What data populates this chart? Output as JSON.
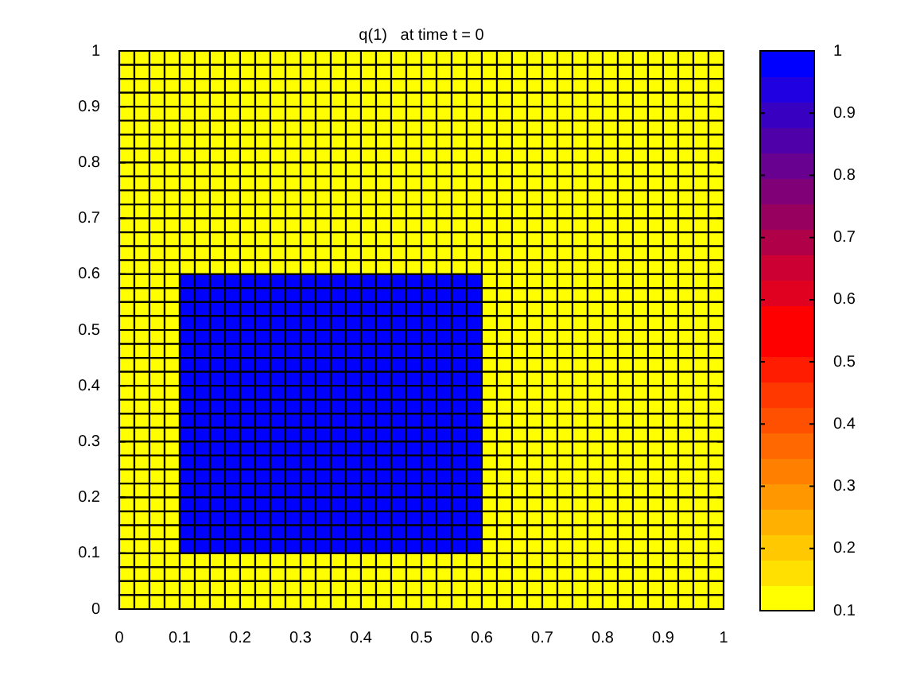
{
  "chart_data": {
    "type": "heatmap",
    "title": "q(1)   at time t = 0",
    "x": [
      0.0125,
      0.0375,
      0.0625,
      0.0875,
      0.1125,
      0.1375,
      0.1625,
      0.1875,
      0.2125,
      0.2375,
      0.2625,
      0.2875,
      0.3125,
      0.3375,
      0.3625,
      0.3875,
      0.4125,
      0.4375,
      0.4625,
      0.4875,
      0.5125,
      0.5375,
      0.5625,
      0.5875,
      0.6125,
      0.6375,
      0.6625,
      0.6875,
      0.7125,
      0.7375,
      0.7625,
      0.7875,
      0.8125,
      0.8375,
      0.8625,
      0.8875,
      0.9125,
      0.9375,
      0.9625,
      0.9875
    ],
    "y": [
      0.9875,
      0.9625,
      0.9375,
      0.9125,
      0.8875,
      0.8625,
      0.8375,
      0.8125,
      0.7875,
      0.7625,
      0.7375,
      0.7125,
      0.6875,
      0.6625,
      0.6375,
      0.6125,
      0.5875,
      0.5625,
      0.5375,
      0.5125,
      0.4875,
      0.4625,
      0.4375,
      0.4125,
      0.3875,
      0.3625,
      0.3375,
      0.3125,
      0.2875,
      0.2625,
      0.2375,
      0.2125,
      0.1875,
      0.1625,
      0.1375,
      0.1125,
      0.0875,
      0.0625,
      0.0375,
      0.0125
    ],
    "xlim": [
      0,
      1
    ],
    "xticks": [
      0,
      0.1,
      0.2,
      0.3,
      0.4,
      0.5,
      0.6,
      0.7,
      0.8,
      0.9,
      1
    ],
    "ylim": [
      0,
      1
    ],
    "yticks": [
      0,
      0.1,
      0.2,
      0.3,
      0.4,
      0.5,
      0.6,
      0.7,
      0.8,
      0.9,
      1
    ],
    "clim": [
      0.1,
      1
    ],
    "cticks": [
      0.1,
      0.2,
      0.3,
      0.4,
      0.5,
      0.6,
      0.7,
      0.8,
      0.9,
      1
    ],
    "colors": [
      "#ffff00",
      "#ffe000",
      "#ffc800",
      "#ffb000",
      "#ff9800",
      "#ff8000",
      "#ff6800",
      "#ff5000",
      "#ff3800",
      "#ff1c00",
      "#ff0000",
      "#ff0000",
      "#e00020",
      "#cc0033",
      "#b00048",
      "#980060",
      "#800078",
      "#680090",
      "#5000a8",
      "#3800c0",
      "#2000e0",
      "#0000ff"
    ],
    "cells": [
      [
        0.1,
        0.1,
        0.1,
        0.1,
        0.1,
        0.1,
        0.1,
        0.1,
        0.1,
        0.1,
        0.1,
        0.1,
        0.1,
        0.1,
        0.1,
        0.1,
        0.1,
        0.1,
        0.1,
        0.1,
        0.1,
        0.1,
        0.1,
        0.1,
        0.1,
        0.1,
        0.1,
        0.1,
        0.1,
        0.1,
        0.1,
        0.1,
        0.1,
        0.1,
        0.1,
        0.1,
        0.1,
        0.1,
        0.1,
        0.1
      ],
      [
        0.1,
        0.1,
        0.1,
        0.1,
        0.1,
        0.1,
        0.1,
        0.1,
        0.1,
        0.1,
        0.1,
        0.1,
        0.1,
        0.1,
        0.1,
        0.1,
        0.1,
        0.1,
        0.1,
        0.1,
        0.1,
        0.1,
        0.1,
        0.1,
        0.1,
        0.1,
        0.1,
        0.1,
        0.1,
        0.1,
        0.1,
        0.1,
        0.1,
        0.1,
        0.1,
        0.1,
        0.1,
        0.1,
        0.1,
        0.1
      ],
      [
        0.1,
        0.1,
        0.1,
        0.1,
        0.1,
        0.1,
        0.1,
        0.1,
        0.1,
        0.1,
        0.1,
        0.1,
        0.1,
        0.1,
        0.1,
        0.1,
        0.1,
        0.1,
        0.1,
        0.1,
        0.1,
        0.1,
        0.1,
        0.1,
        0.1,
        0.1,
        0.1,
        0.1,
        0.1,
        0.1,
        0.1,
        0.1,
        0.1,
        0.1,
        0.1,
        0.1,
        0.1,
        0.1,
        0.1,
        0.1
      ],
      [
        0.1,
        0.1,
        0.1,
        0.1,
        0.1,
        0.1,
        0.1,
        0.1,
        0.1,
        0.1,
        0.1,
        0.1,
        0.1,
        0.1,
        0.1,
        0.1,
        0.1,
        0.1,
        0.1,
        0.1,
        0.1,
        0.1,
        0.1,
        0.1,
        0.1,
        0.1,
        0.1,
        0.1,
        0.1,
        0.1,
        0.1,
        0.1,
        0.1,
        0.1,
        0.1,
        0.1,
        0.1,
        0.1,
        0.1,
        0.1
      ],
      [
        0.1,
        0.1,
        0.1,
        0.1,
        0.1,
        0.1,
        0.1,
        0.1,
        0.1,
        0.1,
        0.1,
        0.1,
        0.1,
        0.1,
        0.1,
        0.1,
        0.1,
        0.1,
        0.1,
        0.1,
        0.1,
        0.1,
        0.1,
        0.1,
        0.1,
        0.1,
        0.1,
        0.1,
        0.1,
        0.1,
        0.1,
        0.1,
        0.1,
        0.1,
        0.1,
        0.1,
        0.1,
        0.1,
        0.1,
        0.1
      ],
      [
        0.1,
        0.1,
        0.1,
        0.1,
        0.1,
        0.1,
        0.1,
        0.1,
        0.1,
        0.1,
        0.1,
        0.1,
        0.1,
        0.1,
        0.1,
        0.1,
        0.1,
        0.1,
        0.1,
        0.1,
        0.1,
        0.1,
        0.1,
        0.1,
        0.1,
        0.1,
        0.1,
        0.1,
        0.1,
        0.1,
        0.1,
        0.1,
        0.1,
        0.1,
        0.1,
        0.1,
        0.1,
        0.1,
        0.1,
        0.1
      ],
      [
        0.1,
        0.1,
        0.1,
        0.1,
        0.1,
        0.1,
        0.1,
        0.1,
        0.1,
        0.1,
        0.1,
        0.1,
        0.1,
        0.1,
        0.1,
        0.1,
        0.1,
        0.1,
        0.1,
        0.1,
        0.1,
        0.1,
        0.1,
        0.1,
        0.1,
        0.1,
        0.1,
        0.1,
        0.1,
        0.1,
        0.1,
        0.1,
        0.1,
        0.1,
        0.1,
        0.1,
        0.1,
        0.1,
        0.1,
        0.1
      ],
      [
        0.1,
        0.1,
        0.1,
        0.1,
        0.1,
        0.1,
        0.1,
        0.1,
        0.1,
        0.1,
        0.1,
        0.1,
        0.1,
        0.1,
        0.1,
        0.1,
        0.1,
        0.1,
        0.1,
        0.1,
        0.1,
        0.1,
        0.1,
        0.1,
        0.1,
        0.1,
        0.1,
        0.1,
        0.1,
        0.1,
        0.1,
        0.1,
        0.1,
        0.1,
        0.1,
        0.1,
        0.1,
        0.1,
        0.1,
        0.1
      ],
      [
        0.1,
        0.1,
        0.1,
        0.1,
        0.1,
        0.1,
        0.1,
        0.1,
        0.1,
        0.1,
        0.1,
        0.1,
        0.1,
        0.1,
        0.1,
        0.1,
        0.1,
        0.1,
        0.1,
        0.1,
        0.1,
        0.1,
        0.1,
        0.1,
        0.1,
        0.1,
        0.1,
        0.1,
        0.1,
        0.1,
        0.1,
        0.1,
        0.1,
        0.1,
        0.1,
        0.1,
        0.1,
        0.1,
        0.1,
        0.1
      ],
      [
        0.1,
        0.1,
        0.1,
        0.1,
        0.1,
        0.1,
        0.1,
        0.1,
        0.1,
        0.1,
        0.1,
        0.1,
        0.1,
        0.1,
        0.1,
        0.1,
        0.1,
        0.1,
        0.1,
        0.1,
        0.1,
        0.1,
        0.1,
        0.1,
        0.1,
        0.1,
        0.1,
        0.1,
        0.1,
        0.1,
        0.1,
        0.1,
        0.1,
        0.1,
        0.1,
        0.1,
        0.1,
        0.1,
        0.1,
        0.1
      ],
      [
        0.1,
        0.1,
        0.1,
        0.1,
        0.1,
        0.1,
        0.1,
        0.1,
        0.1,
        0.1,
        0.1,
        0.1,
        0.1,
        0.1,
        0.1,
        0.1,
        0.1,
        0.1,
        0.1,
        0.1,
        0.1,
        0.1,
        0.1,
        0.1,
        0.1,
        0.1,
        0.1,
        0.1,
        0.1,
        0.1,
        0.1,
        0.1,
        0.1,
        0.1,
        0.1,
        0.1,
        0.1,
        0.1,
        0.1,
        0.1
      ],
      [
        0.1,
        0.1,
        0.1,
        0.1,
        0.1,
        0.1,
        0.1,
        0.1,
        0.1,
        0.1,
        0.1,
        0.1,
        0.1,
        0.1,
        0.1,
        0.1,
        0.1,
        0.1,
        0.1,
        0.1,
        0.1,
        0.1,
        0.1,
        0.1,
        0.1,
        0.1,
        0.1,
        0.1,
        0.1,
        0.1,
        0.1,
        0.1,
        0.1,
        0.1,
        0.1,
        0.1,
        0.1,
        0.1,
        0.1,
        0.1
      ],
      [
        0.1,
        0.1,
        0.1,
        0.1,
        0.1,
        0.1,
        0.1,
        0.1,
        0.1,
        0.1,
        0.1,
        0.1,
        0.1,
        0.1,
        0.1,
        0.1,
        0.1,
        0.1,
        0.1,
        0.1,
        0.1,
        0.1,
        0.1,
        0.1,
        0.1,
        0.1,
        0.1,
        0.1,
        0.1,
        0.1,
        0.1,
        0.1,
        0.1,
        0.1,
        0.1,
        0.1,
        0.1,
        0.1,
        0.1,
        0.1
      ],
      [
        0.1,
        0.1,
        0.1,
        0.1,
        0.1,
        0.1,
        0.1,
        0.1,
        0.1,
        0.1,
        0.1,
        0.1,
        0.1,
        0.1,
        0.1,
        0.1,
        0.1,
        0.1,
        0.1,
        0.1,
        0.1,
        0.1,
        0.1,
        0.1,
        0.1,
        0.1,
        0.1,
        0.1,
        0.1,
        0.1,
        0.1,
        0.1,
        0.1,
        0.1,
        0.1,
        0.1,
        0.1,
        0.1,
        0.1,
        0.1
      ],
      [
        0.1,
        0.1,
        0.1,
        0.1,
        0.1,
        0.1,
        0.1,
        0.1,
        0.1,
        0.1,
        0.1,
        0.1,
        0.1,
        0.1,
        0.1,
        0.1,
        0.1,
        0.1,
        0.1,
        0.1,
        0.1,
        0.1,
        0.1,
        0.1,
        0.1,
        0.1,
        0.1,
        0.1,
        0.1,
        0.1,
        0.1,
        0.1,
        0.1,
        0.1,
        0.1,
        0.1,
        0.1,
        0.1,
        0.1,
        0.1
      ],
      [
        0.1,
        0.1,
        0.1,
        0.1,
        0.1,
        0.1,
        0.1,
        0.1,
        0.1,
        0.1,
        0.1,
        0.1,
        0.1,
        0.1,
        0.1,
        0.1,
        0.1,
        0.1,
        0.1,
        0.1,
        0.1,
        0.1,
        0.1,
        0.1,
        0.1,
        0.1,
        0.1,
        0.1,
        0.1,
        0.1,
        0.1,
        0.1,
        0.1,
        0.1,
        0.1,
        0.1,
        0.1,
        0.1,
        0.1,
        0.1
      ],
      [
        0.1,
        0.1,
        0.1,
        0.1,
        1,
        1,
        1,
        1,
        1,
        1,
        1,
        1,
        1,
        1,
        1,
        1,
        1,
        1,
        1,
        1,
        1,
        1,
        1,
        1,
        0.1,
        0.1,
        0.1,
        0.1,
        0.1,
        0.1,
        0.1,
        0.1,
        0.1,
        0.1,
        0.1,
        0.1,
        0.1,
        0.1,
        0.1,
        0.1
      ],
      [
        0.1,
        0.1,
        0.1,
        0.1,
        1,
        1,
        1,
        1,
        1,
        1,
        1,
        1,
        1,
        1,
        1,
        1,
        1,
        1,
        1,
        1,
        1,
        1,
        1,
        1,
        0.1,
        0.1,
        0.1,
        0.1,
        0.1,
        0.1,
        0.1,
        0.1,
        0.1,
        0.1,
        0.1,
        0.1,
        0.1,
        0.1,
        0.1,
        0.1
      ],
      [
        0.1,
        0.1,
        0.1,
        0.1,
        1,
        1,
        1,
        1,
        1,
        1,
        1,
        1,
        1,
        1,
        1,
        1,
        1,
        1,
        1,
        1,
        1,
        1,
        1,
        1,
        0.1,
        0.1,
        0.1,
        0.1,
        0.1,
        0.1,
        0.1,
        0.1,
        0.1,
        0.1,
        0.1,
        0.1,
        0.1,
        0.1,
        0.1,
        0.1
      ],
      [
        0.1,
        0.1,
        0.1,
        0.1,
        1,
        1,
        1,
        1,
        1,
        1,
        1,
        1,
        1,
        1,
        1,
        1,
        1,
        1,
        1,
        1,
        1,
        1,
        1,
        1,
        0.1,
        0.1,
        0.1,
        0.1,
        0.1,
        0.1,
        0.1,
        0.1,
        0.1,
        0.1,
        0.1,
        0.1,
        0.1,
        0.1,
        0.1,
        0.1
      ],
      [
        0.1,
        0.1,
        0.1,
        0.1,
        1,
        1,
        1,
        1,
        1,
        1,
        1,
        1,
        1,
        1,
        1,
        1,
        1,
        1,
        1,
        1,
        1,
        1,
        1,
        1,
        0.1,
        0.1,
        0.1,
        0.1,
        0.1,
        0.1,
        0.1,
        0.1,
        0.1,
        0.1,
        0.1,
        0.1,
        0.1,
        0.1,
        0.1,
        0.1
      ],
      [
        0.1,
        0.1,
        0.1,
        0.1,
        1,
        1,
        1,
        1,
        1,
        1,
        1,
        1,
        1,
        1,
        1,
        1,
        1,
        1,
        1,
        1,
        1,
        1,
        1,
        1,
        0.1,
        0.1,
        0.1,
        0.1,
        0.1,
        0.1,
        0.1,
        0.1,
        0.1,
        0.1,
        0.1,
        0.1,
        0.1,
        0.1,
        0.1,
        0.1
      ],
      [
        0.1,
        0.1,
        0.1,
        0.1,
        1,
        1,
        1,
        1,
        1,
        1,
        1,
        1,
        1,
        1,
        1,
        1,
        1,
        1,
        1,
        1,
        1,
        1,
        1,
        1,
        0.1,
        0.1,
        0.1,
        0.1,
        0.1,
        0.1,
        0.1,
        0.1,
        0.1,
        0.1,
        0.1,
        0.1,
        0.1,
        0.1,
        0.1,
        0.1
      ],
      [
        0.1,
        0.1,
        0.1,
        0.1,
        1,
        1,
        1,
        1,
        1,
        1,
        1,
        1,
        1,
        1,
        1,
        1,
        1,
        1,
        1,
        1,
        1,
        1,
        1,
        1,
        0.1,
        0.1,
        0.1,
        0.1,
        0.1,
        0.1,
        0.1,
        0.1,
        0.1,
        0.1,
        0.1,
        0.1,
        0.1,
        0.1,
        0.1,
        0.1
      ],
      [
        0.1,
        0.1,
        0.1,
        0.1,
        1,
        1,
        1,
        1,
        1,
        1,
        1,
        1,
        1,
        1,
        1,
        1,
        1,
        1,
        1,
        1,
        1,
        1,
        1,
        1,
        0.1,
        0.1,
        0.1,
        0.1,
        0.1,
        0.1,
        0.1,
        0.1,
        0.1,
        0.1,
        0.1,
        0.1,
        0.1,
        0.1,
        0.1,
        0.1
      ],
      [
        0.1,
        0.1,
        0.1,
        0.1,
        1,
        1,
        1,
        1,
        1,
        1,
        1,
        1,
        1,
        1,
        1,
        1,
        1,
        1,
        1,
        1,
        1,
        1,
        1,
        1,
        0.1,
        0.1,
        0.1,
        0.1,
        0.1,
        0.1,
        0.1,
        0.1,
        0.1,
        0.1,
        0.1,
        0.1,
        0.1,
        0.1,
        0.1,
        0.1
      ],
      [
        0.1,
        0.1,
        0.1,
        0.1,
        1,
        1,
        1,
        1,
        1,
        1,
        1,
        1,
        1,
        1,
        1,
        1,
        1,
        1,
        1,
        1,
        1,
        1,
        1,
        1,
        0.1,
        0.1,
        0.1,
        0.1,
        0.1,
        0.1,
        0.1,
        0.1,
        0.1,
        0.1,
        0.1,
        0.1,
        0.1,
        0.1,
        0.1,
        0.1
      ],
      [
        0.1,
        0.1,
        0.1,
        0.1,
        1,
        1,
        1,
        1,
        1,
        1,
        1,
        1,
        1,
        1,
        1,
        1,
        1,
        1,
        1,
        1,
        1,
        1,
        1,
        1,
        0.1,
        0.1,
        0.1,
        0.1,
        0.1,
        0.1,
        0.1,
        0.1,
        0.1,
        0.1,
        0.1,
        0.1,
        0.1,
        0.1,
        0.1,
        0.1
      ],
      [
        0.1,
        0.1,
        0.1,
        0.1,
        1,
        1,
        1,
        1,
        1,
        1,
        1,
        1,
        1,
        1,
        1,
        1,
        1,
        1,
        1,
        1,
        1,
        1,
        1,
        1,
        0.1,
        0.1,
        0.1,
        0.1,
        0.1,
        0.1,
        0.1,
        0.1,
        0.1,
        0.1,
        0.1,
        0.1,
        0.1,
        0.1,
        0.1,
        0.1
      ],
      [
        0.1,
        0.1,
        0.1,
        0.1,
        1,
        1,
        1,
        1,
        1,
        1,
        1,
        1,
        1,
        1,
        1,
        1,
        1,
        1,
        1,
        1,
        1,
        1,
        1,
        1,
        0.1,
        0.1,
        0.1,
        0.1,
        0.1,
        0.1,
        0.1,
        0.1,
        0.1,
        0.1,
        0.1,
        0.1,
        0.1,
        0.1,
        0.1,
        0.1
      ],
      [
        0.1,
        0.1,
        0.1,
        0.1,
        1,
        1,
        1,
        1,
        1,
        1,
        1,
        1,
        1,
        1,
        1,
        1,
        1,
        1,
        1,
        1,
        1,
        1,
        1,
        1,
        0.1,
        0.1,
        0.1,
        0.1,
        0.1,
        0.1,
        0.1,
        0.1,
        0.1,
        0.1,
        0.1,
        0.1,
        0.1,
        0.1,
        0.1,
        0.1
      ],
      [
        0.1,
        0.1,
        0.1,
        0.1,
        1,
        1,
        1,
        1,
        1,
        1,
        1,
        1,
        1,
        1,
        1,
        1,
        1,
        1,
        1,
        1,
        1,
        1,
        1,
        1,
        0.1,
        0.1,
        0.1,
        0.1,
        0.1,
        0.1,
        0.1,
        0.1,
        0.1,
        0.1,
        0.1,
        0.1,
        0.1,
        0.1,
        0.1,
        0.1
      ],
      [
        0.1,
        0.1,
        0.1,
        0.1,
        1,
        1,
        1,
        1,
        1,
        1,
        1,
        1,
        1,
        1,
        1,
        1,
        1,
        1,
        1,
        1,
        1,
        1,
        1,
        1,
        0.1,
        0.1,
        0.1,
        0.1,
        0.1,
        0.1,
        0.1,
        0.1,
        0.1,
        0.1,
        0.1,
        0.1,
        0.1,
        0.1,
        0.1,
        0.1
      ],
      [
        0.1,
        0.1,
        0.1,
        0.1,
        1,
        1,
        1,
        1,
        1,
        1,
        1,
        1,
        1,
        1,
        1,
        1,
        1,
        1,
        1,
        1,
        1,
        1,
        1,
        1,
        0.1,
        0.1,
        0.1,
        0.1,
        0.1,
        0.1,
        0.1,
        0.1,
        0.1,
        0.1,
        0.1,
        0.1,
        0.1,
        0.1,
        0.1,
        0.1
      ],
      [
        0.1,
        0.1,
        0.1,
        0.1,
        1,
        1,
        1,
        1,
        1,
        1,
        1,
        1,
        1,
        1,
        1,
        1,
        1,
        1,
        1,
        1,
        1,
        1,
        1,
        1,
        0.1,
        0.1,
        0.1,
        0.1,
        0.1,
        0.1,
        0.1,
        0.1,
        0.1,
        0.1,
        0.1,
        0.1,
        0.1,
        0.1,
        0.1,
        0.1
      ],
      [
        0.1,
        0.1,
        0.1,
        0.1,
        1,
        1,
        1,
        1,
        1,
        1,
        1,
        1,
        1,
        1,
        1,
        1,
        1,
        1,
        1,
        1,
        1,
        1,
        1,
        1,
        0.1,
        0.1,
        0.1,
        0.1,
        0.1,
        0.1,
        0.1,
        0.1,
        0.1,
        0.1,
        0.1,
        0.1,
        0.1,
        0.1,
        0.1,
        0.1
      ],
      [
        0.1,
        0.1,
        0.1,
        0.1,
        0.1,
        0.1,
        0.1,
        0.1,
        0.1,
        0.1,
        0.1,
        0.1,
        0.1,
        0.1,
        0.1,
        0.1,
        0.1,
        0.1,
        0.1,
        0.1,
        0.1,
        0.1,
        0.1,
        0.1,
        0.1,
        0.1,
        0.1,
        0.1,
        0.1,
        0.1,
        0.1,
        0.1,
        0.1,
        0.1,
        0.1,
        0.1,
        0.1,
        0.1,
        0.1,
        0.1
      ],
      [
        0.1,
        0.1,
        0.1,
        0.1,
        0.1,
        0.1,
        0.1,
        0.1,
        0.1,
        0.1,
        0.1,
        0.1,
        0.1,
        0.1,
        0.1,
        0.1,
        0.1,
        0.1,
        0.1,
        0.1,
        0.1,
        0.1,
        0.1,
        0.1,
        0.1,
        0.1,
        0.1,
        0.1,
        0.1,
        0.1,
        0.1,
        0.1,
        0.1,
        0.1,
        0.1,
        0.1,
        0.1,
        0.1,
        0.1,
        0.1
      ],
      [
        0.1,
        0.1,
        0.1,
        0.1,
        0.1,
        0.1,
        0.1,
        0.1,
        0.1,
        0.1,
        0.1,
        0.1,
        0.1,
        0.1,
        0.1,
        0.1,
        0.1,
        0.1,
        0.1,
        0.1,
        0.1,
        0.1,
        0.1,
        0.1,
        0.1,
        0.1,
        0.1,
        0.1,
        0.1,
        0.1,
        0.1,
        0.1,
        0.1,
        0.1,
        0.1,
        0.1,
        0.1,
        0.1,
        0.1,
        0.1
      ],
      [
        0.1,
        0.1,
        0.1,
        0.1,
        0.1,
        0.1,
        0.1,
        0.1,
        0.1,
        0.1,
        0.1,
        0.1,
        0.1,
        0.1,
        0.1,
        0.1,
        0.1,
        0.1,
        0.1,
        0.1,
        0.1,
        0.1,
        0.1,
        0.1,
        0.1,
        0.1,
        0.1,
        0.1,
        0.1,
        0.1,
        0.1,
        0.1,
        0.1,
        0.1,
        0.1,
        0.1,
        0.1,
        0.1,
        0.1,
        0.1
      ]
    ]
  }
}
